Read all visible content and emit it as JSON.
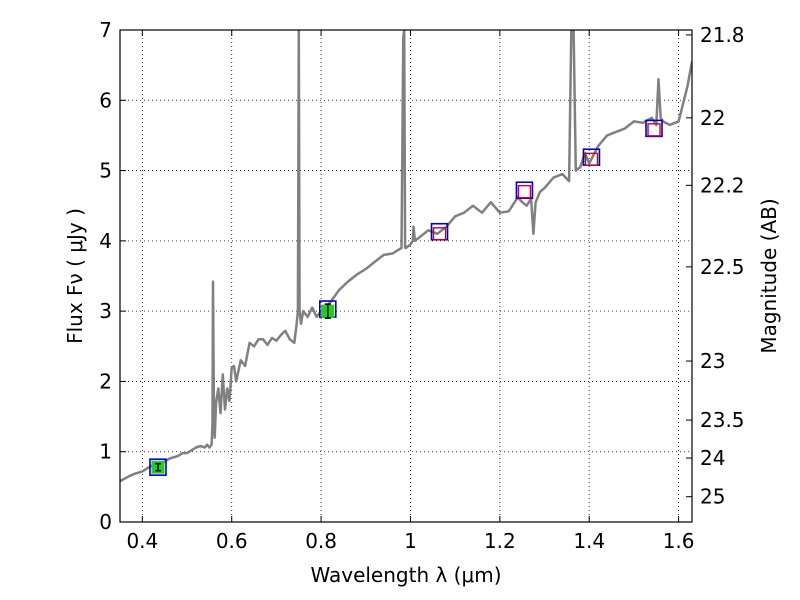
{
  "chart_data": {
    "type": "line",
    "title": "",
    "xlabel": "Wavelength  λ (μm)",
    "ylabel": "Flux  Fν  ( μJy )",
    "y2label": "Magnitude (AB)",
    "xlim": [
      0.35,
      1.63
    ],
    "ylim": [
      0,
      7
    ],
    "grid": true,
    "x_ticks": [
      0.4,
      0.6,
      0.8,
      1.0,
      1.2,
      1.4,
      1.6
    ],
    "x_tick_labels": [
      "0.4",
      "0.6",
      "0.8",
      "1",
      "1.2",
      "1.4",
      "1.6"
    ],
    "y_ticks": [
      0,
      1,
      2,
      3,
      4,
      5,
      6,
      7
    ],
    "y_tick_labels": [
      "0",
      "1",
      "2",
      "3",
      "4",
      "5",
      "6",
      "7"
    ],
    "y2_ticks": [
      {
        "label": "21.8",
        "flux": 6.93
      },
      {
        "label": "22",
        "flux": 5.75
      },
      {
        "label": "22.2",
        "flux": 4.79
      },
      {
        "label": "22.5",
        "flux": 3.63
      },
      {
        "label": "23",
        "flux": 2.29
      },
      {
        "label": "23.5",
        "flux": 1.45
      },
      {
        "label": "24",
        "flux": 0.91
      },
      {
        "label": "25",
        "flux": 0.36
      }
    ],
    "colors": {
      "spectrum": "#808080",
      "model_marker": "#0000cc",
      "observed_marker": "#cc0033",
      "detection_fill": "#22cc22"
    },
    "series": [
      {
        "type": "line",
        "x": [
          0.35,
          0.37,
          0.38,
          0.39,
          0.4,
          0.41,
          0.42,
          0.43,
          0.44,
          0.45,
          0.46,
          0.47,
          0.48,
          0.49,
          0.5,
          0.51,
          0.52,
          0.53,
          0.54,
          0.545,
          0.55,
          0.555,
          0.557,
          0.558,
          0.56,
          0.562,
          0.565,
          0.57,
          0.575,
          0.58,
          0.585,
          0.59,
          0.595,
          0.6,
          0.605,
          0.61,
          0.62,
          0.63,
          0.64,
          0.65,
          0.66,
          0.67,
          0.68,
          0.69,
          0.7,
          0.71,
          0.72,
          0.73,
          0.74,
          0.745,
          0.748,
          0.75,
          0.752,
          0.755,
          0.76,
          0.77,
          0.78,
          0.79,
          0.8,
          0.82,
          0.84,
          0.86,
          0.88,
          0.9,
          0.92,
          0.94,
          0.96,
          0.98,
          0.984,
          0.986,
          0.988,
          0.99,
          1.0,
          1.005,
          1.007,
          1.01,
          1.02,
          1.04,
          1.06,
          1.08,
          1.1,
          1.12,
          1.14,
          1.16,
          1.18,
          1.2,
          1.22,
          1.24,
          1.25,
          1.26,
          1.27,
          1.275,
          1.28,
          1.29,
          1.3,
          1.32,
          1.34,
          1.355,
          1.36,
          1.365,
          1.37,
          1.38,
          1.39,
          1.4,
          1.42,
          1.44,
          1.46,
          1.48,
          1.5,
          1.52,
          1.54,
          1.55,
          1.555,
          1.56,
          1.565,
          1.58,
          1.6,
          1.62,
          1.63
        ],
        "y": [
          0.58,
          0.65,
          0.68,
          0.7,
          0.72,
          0.76,
          0.8,
          0.78,
          0.84,
          0.86,
          0.9,
          0.92,
          0.94,
          0.98,
          0.98,
          1.02,
          1.06,
          1.08,
          1.06,
          1.1,
          1.06,
          1.1,
          1.4,
          3.42,
          1.8,
          1.2,
          1.7,
          1.9,
          1.55,
          2.1,
          1.6,
          1.9,
          1.72,
          2.2,
          2.22,
          2.0,
          2.3,
          2.22,
          2.55,
          2.5,
          2.6,
          2.6,
          2.52,
          2.62,
          2.58,
          2.66,
          2.72,
          2.6,
          2.55,
          2.8,
          3.0,
          7.0,
          3.0,
          2.82,
          3.0,
          2.92,
          3.05,
          2.92,
          3.0,
          3.12,
          3.3,
          3.42,
          3.52,
          3.6,
          3.7,
          3.8,
          3.82,
          3.9,
          6.9,
          7.0,
          3.9,
          3.9,
          3.95,
          4.0,
          4.2,
          4.0,
          4.05,
          4.15,
          4.1,
          4.2,
          4.35,
          4.4,
          4.5,
          4.4,
          4.55,
          4.4,
          4.42,
          4.62,
          4.55,
          4.5,
          4.6,
          4.1,
          4.55,
          4.7,
          4.75,
          4.9,
          4.95,
          4.85,
          7.0,
          7.0,
          5.0,
          5.05,
          5.25,
          5.1,
          5.35,
          5.5,
          5.55,
          5.6,
          5.7,
          5.68,
          5.75,
          5.65,
          6.3,
          5.75,
          5.7,
          5.65,
          5.7,
          6.2,
          6.55
        ]
      },
      {
        "type": "scatter",
        "name": "",
        "marker": "square",
        "x": [
          0.435,
          0.815,
          1.065,
          1.255,
          1.405,
          1.545
        ],
        "y": [
          0.78,
          3.03,
          4.13,
          4.72,
          5.19,
          5.6
        ]
      },
      {
        "type": "scatter",
        "name": "",
        "marker": "square",
        "x": [
          0.435,
          0.815,
          1.065,
          1.255,
          1.405,
          1.545
        ],
        "y": [
          0.78,
          3.0,
          4.1,
          4.7,
          5.16,
          5.58
        ],
        "err": [
          0.05,
          0.1,
          0.07,
          0.06,
          0.06,
          0.06
        ],
        "detected": [
          true,
          true,
          false,
          false,
          false,
          false
        ]
      }
    ]
  }
}
